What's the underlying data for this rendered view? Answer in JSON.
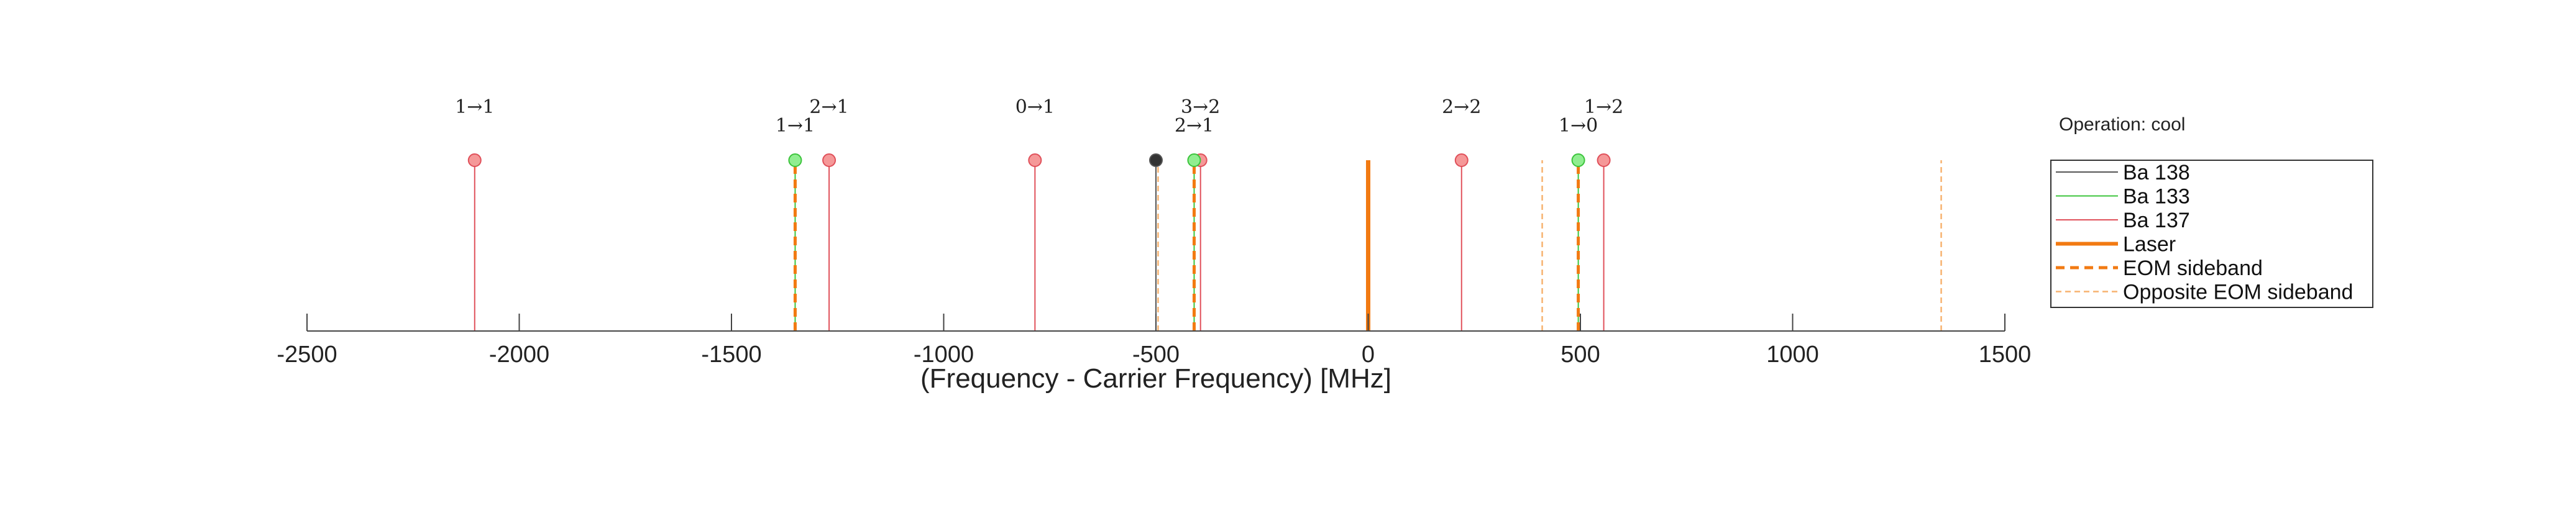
{
  "operation_label": "Operation: cool",
  "chart_data": {
    "type": "stem",
    "xlabel": "(Frequency - Carrier Frequency) [MHz]",
    "xlim": [
      -2500,
      1500
    ],
    "xticks": [
      -2500,
      -2000,
      -1500,
      -1000,
      -500,
      0,
      500,
      1000,
      1500
    ],
    "xtick_labels": [
      "-2500",
      "-2000",
      "-1500",
      "-1000",
      "-500",
      "0",
      "500",
      "1000",
      "1500"
    ],
    "grid": false,
    "legend_placement": "right",
    "colors": {
      "ba138": "#555555",
      "ba133": "#3cc43c",
      "ba137": "#e0505a",
      "laser": "#f27a12",
      "eom": "#f27a12",
      "opposite_eom": "#f7b26f",
      "ba138_marker": "#333333",
      "ba133_marker": "#90ee90",
      "ba137_marker": "#f59898"
    },
    "series": [
      {
        "name": "Ba 138",
        "key": "ba138",
        "style": "line",
        "x": [
          -500
        ]
      },
      {
        "name": "Ba 133",
        "key": "ba133",
        "style": "line",
        "x": [
          -1350,
          -410,
          495
        ]
      },
      {
        "name": "Ba 137",
        "key": "ba137",
        "style": "line",
        "x": [
          -2105,
          -1270,
          -785,
          -395,
          220,
          555
        ]
      },
      {
        "name": "Laser",
        "key": "laser",
        "style": "thick",
        "x": [
          0
        ]
      },
      {
        "name": "EOM sideband",
        "key": "eom",
        "style": "dashed-thick",
        "x": [
          -1350,
          -410,
          495
        ]
      },
      {
        "name": "Opposite EOM sideband",
        "key": "opposite_eom",
        "style": "dashed-thin",
        "x": [
          -495,
          410,
          1350
        ]
      }
    ],
    "annotations": [
      {
        "text": "1→1",
        "x": -2105,
        "row": "upper"
      },
      {
        "text": "1→1",
        "x": -1350,
        "row": "lower"
      },
      {
        "text": "2→1",
        "x": -1270,
        "row": "upper"
      },
      {
        "text": "0→1",
        "x": -785,
        "row": "upper"
      },
      {
        "text": "3→2",
        "x": -395,
        "row": "upper"
      },
      {
        "text": "2→1",
        "x": -410,
        "row": "lower"
      },
      {
        "text": "2→2",
        "x": 220,
        "row": "upper"
      },
      {
        "text": "1→0",
        "x": 495,
        "row": "lower"
      },
      {
        "text": "1→2",
        "x": 555,
        "row": "upper"
      }
    ]
  }
}
